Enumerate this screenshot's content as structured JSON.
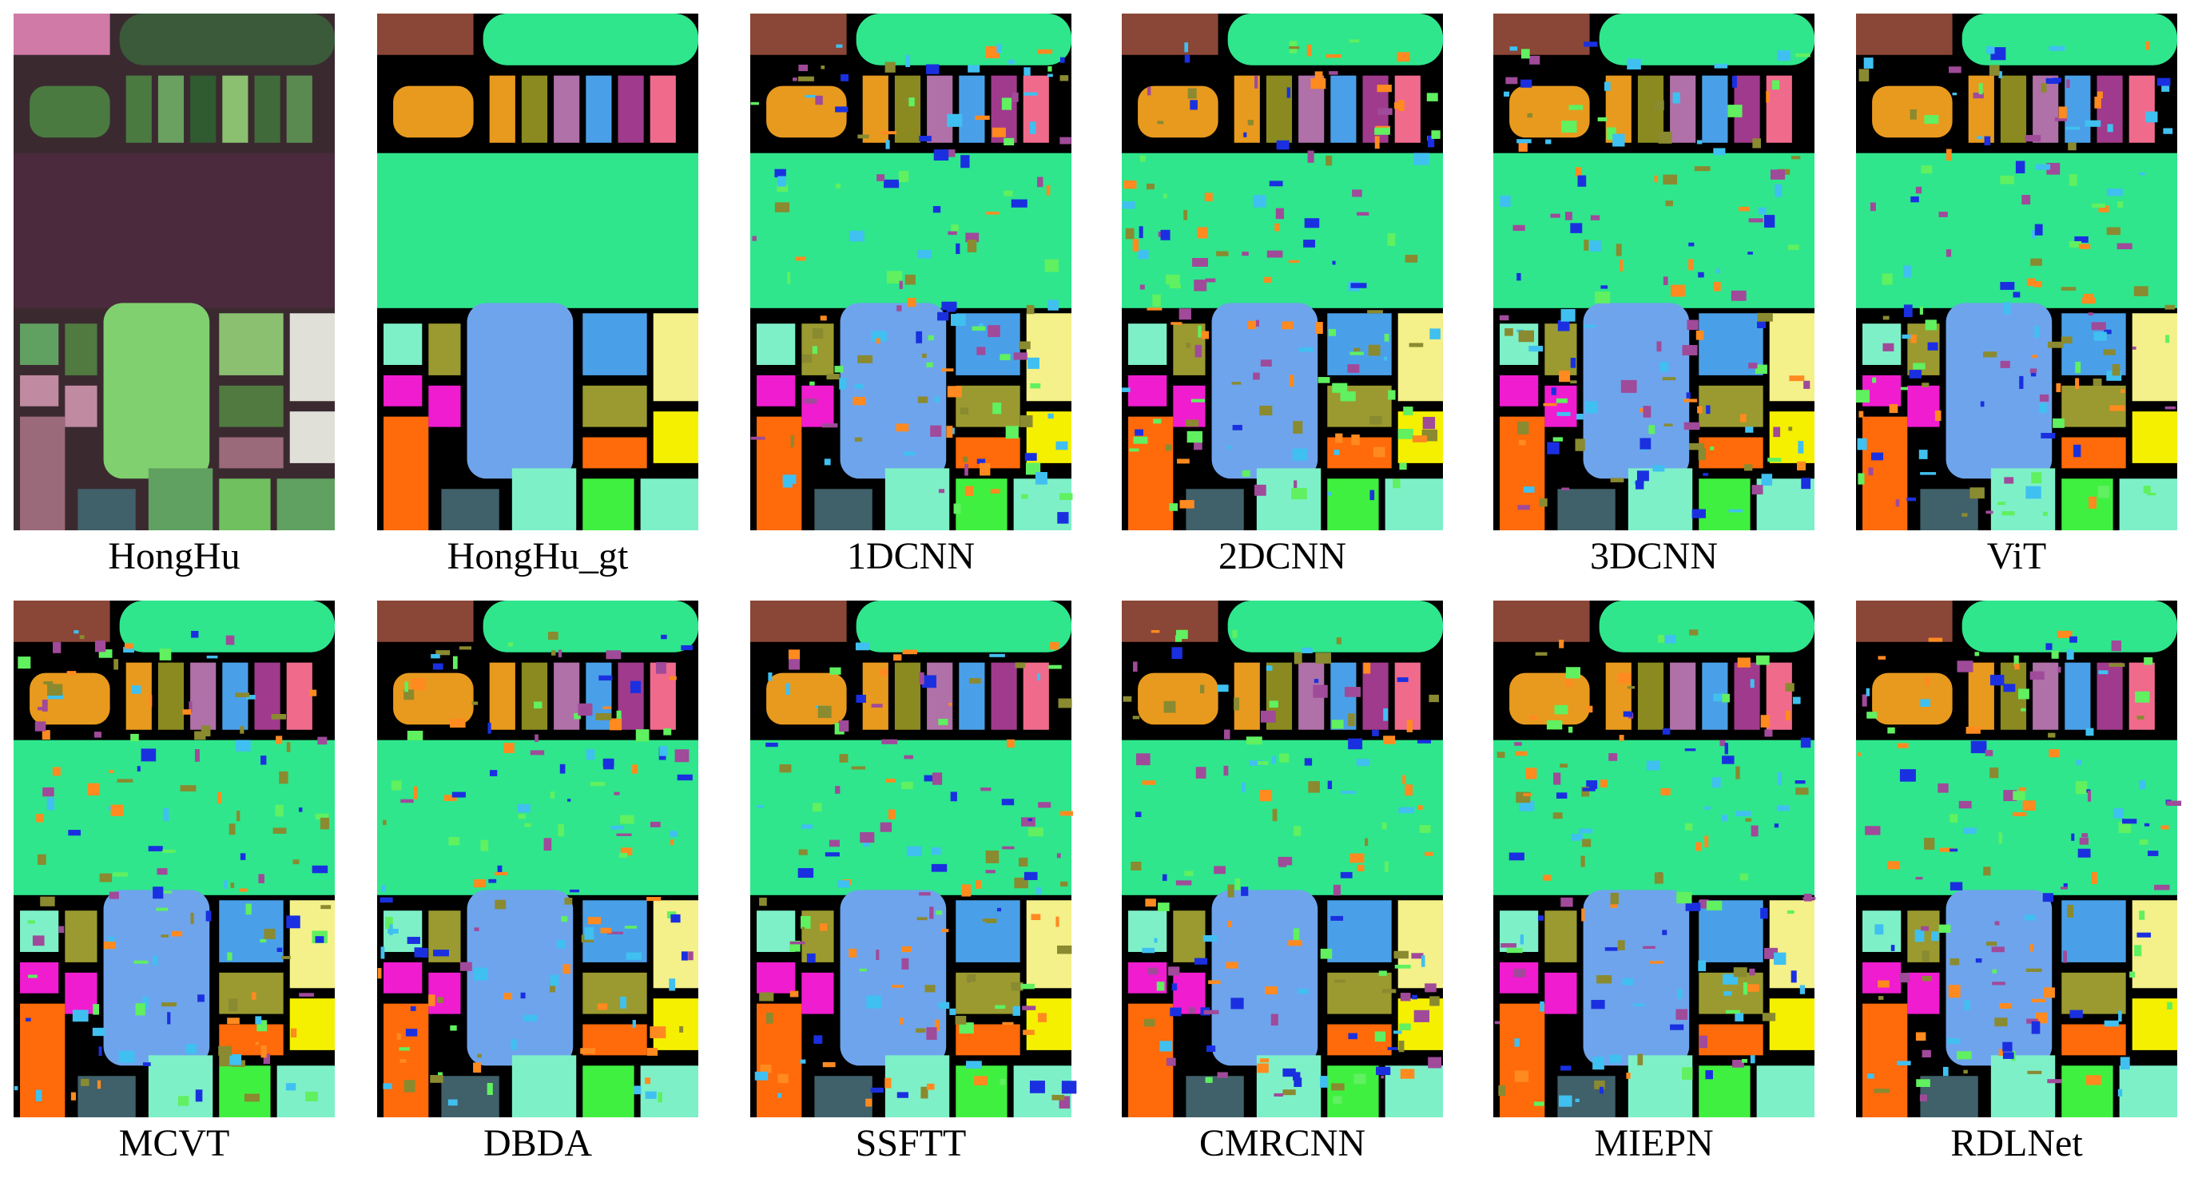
{
  "panels": [
    {
      "label": "HongHu"
    },
    {
      "label": "HongHu_gt"
    },
    {
      "label": "1DCNN"
    },
    {
      "label": "2DCNN"
    },
    {
      "label": "3DCNN"
    },
    {
      "label": "ViT"
    },
    {
      "label": "MCVT"
    },
    {
      "label": "DBDA"
    },
    {
      "label": "SSFTT"
    },
    {
      "label": "CMRCNN"
    },
    {
      "label": "MIEPN"
    },
    {
      "label": "RDLNet"
    }
  ]
}
